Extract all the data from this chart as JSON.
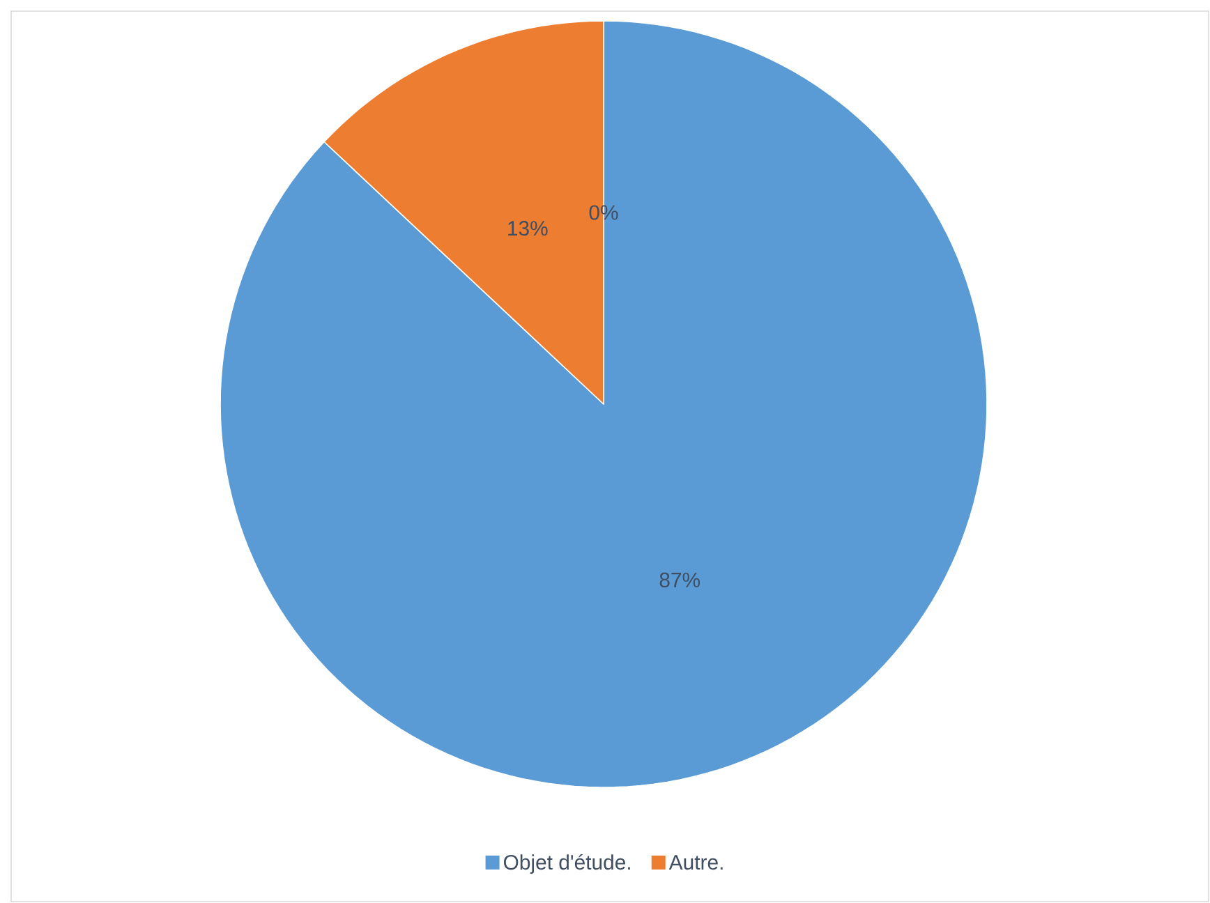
{
  "chart_data": {
    "type": "pie",
    "categories": [
      "Objet d'étude.",
      "Autre.",
      null
    ],
    "values": [
      87,
      13,
      0
    ],
    "colors": [
      "#5b9bd5",
      "#ed7d31",
      "#a5a5a5"
    ],
    "value_labels": [
      "87%",
      "13%",
      "0%"
    ],
    "legend": "bottom"
  }
}
